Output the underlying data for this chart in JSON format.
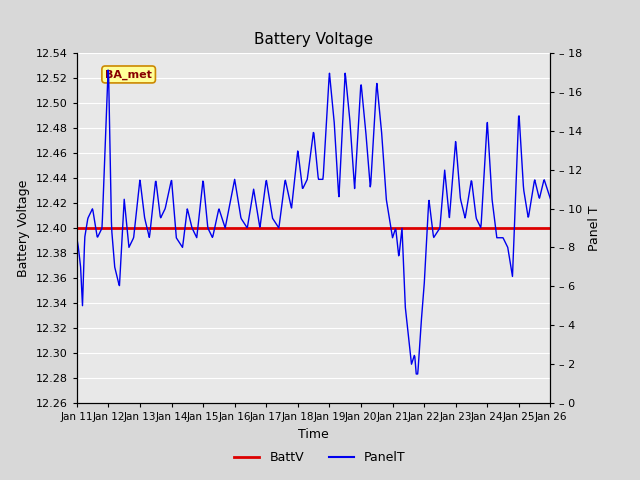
{
  "title": "Battery Voltage",
  "xlabel": "Time",
  "ylabel_left": "Battery Voltage",
  "ylabel_right": "Panel T",
  "ylim_left": [
    12.26,
    12.54
  ],
  "ylim_right": [
    0,
    18
  ],
  "batt_voltage": 12.4,
  "x_tick_labels": [
    "Jan 11",
    "Jan 12",
    "Jan 13",
    "Jan 14",
    "Jan 15",
    "Jan 16",
    "Jan 17",
    "Jan 18",
    "Jan 19",
    "Jan 20",
    "Jan 21",
    "Jan 22",
    "Jan 23",
    "Jan 24",
    "Jan 25",
    "Jan 26"
  ],
  "fig_bg_color": "#d8d8d8",
  "plot_bg_color": "#e8e8e8",
  "grid_color": "#ffffff",
  "line_color_blue": "#0000ee",
  "line_color_red": "#dd0000",
  "annotation_text": "BA_met",
  "annotation_bg": "#ffff99",
  "annotation_border": "#cc8800",
  "annotation_text_color": "#880000",
  "legend_labels": [
    "BattV",
    "PanelT"
  ],
  "panel_t_keypoints": [
    [
      0.0,
      8.5
    ],
    [
      0.05,
      8.0
    ],
    [
      0.12,
      7.0
    ],
    [
      0.18,
      5.0
    ],
    [
      0.25,
      8.5
    ],
    [
      0.35,
      9.5
    ],
    [
      0.5,
      10.0
    ],
    [
      0.65,
      8.5
    ],
    [
      0.8,
      9.0
    ],
    [
      1.0,
      17.5
    ],
    [
      1.1,
      9.0
    ],
    [
      1.2,
      7.0
    ],
    [
      1.35,
      6.0
    ],
    [
      1.5,
      10.5
    ],
    [
      1.65,
      8.0
    ],
    [
      1.8,
      8.5
    ],
    [
      2.0,
      11.5
    ],
    [
      2.15,
      9.5
    ],
    [
      2.3,
      8.5
    ],
    [
      2.5,
      11.5
    ],
    [
      2.65,
      9.5
    ],
    [
      2.8,
      10.0
    ],
    [
      3.0,
      11.5
    ],
    [
      3.15,
      8.5
    ],
    [
      3.35,
      8.0
    ],
    [
      3.5,
      10.0
    ],
    [
      3.65,
      9.0
    ],
    [
      3.8,
      8.5
    ],
    [
      4.0,
      11.5
    ],
    [
      4.15,
      9.0
    ],
    [
      4.3,
      8.5
    ],
    [
      4.5,
      10.0
    ],
    [
      4.7,
      9.0
    ],
    [
      5.0,
      11.5
    ],
    [
      5.2,
      9.5
    ],
    [
      5.4,
      9.0
    ],
    [
      5.6,
      11.0
    ],
    [
      5.8,
      9.0
    ],
    [
      6.0,
      11.5
    ],
    [
      6.2,
      9.5
    ],
    [
      6.4,
      9.0
    ],
    [
      6.6,
      11.5
    ],
    [
      6.8,
      10.0
    ],
    [
      7.0,
      13.0
    ],
    [
      7.15,
      11.0
    ],
    [
      7.3,
      11.5
    ],
    [
      7.5,
      14.0
    ],
    [
      7.65,
      11.5
    ],
    [
      7.8,
      11.5
    ],
    [
      8.0,
      17.0
    ],
    [
      8.15,
      14.5
    ],
    [
      8.3,
      10.5
    ],
    [
      8.5,
      17.0
    ],
    [
      8.65,
      14.5
    ],
    [
      8.8,
      11.0
    ],
    [
      9.0,
      16.5
    ],
    [
      9.15,
      14.0
    ],
    [
      9.3,
      11.0
    ],
    [
      9.5,
      16.5
    ],
    [
      9.65,
      14.0
    ],
    [
      9.8,
      10.5
    ],
    [
      10.0,
      8.5
    ],
    [
      10.1,
      9.0
    ],
    [
      10.2,
      7.5
    ],
    [
      10.3,
      9.0
    ],
    [
      10.4,
      5.0
    ],
    [
      10.5,
      3.5
    ],
    [
      10.6,
      2.0
    ],
    [
      10.7,
      2.5
    ],
    [
      10.75,
      1.5
    ],
    [
      10.8,
      1.5
    ],
    [
      10.9,
      4.0
    ],
    [
      11.0,
      6.0
    ],
    [
      11.15,
      10.5
    ],
    [
      11.3,
      8.5
    ],
    [
      11.5,
      9.0
    ],
    [
      11.65,
      12.0
    ],
    [
      11.8,
      9.5
    ],
    [
      12.0,
      13.5
    ],
    [
      12.15,
      10.5
    ],
    [
      12.3,
      9.5
    ],
    [
      12.5,
      11.5
    ],
    [
      12.65,
      9.5
    ],
    [
      12.8,
      9.0
    ],
    [
      13.0,
      14.5
    ],
    [
      13.15,
      10.5
    ],
    [
      13.3,
      8.5
    ],
    [
      13.5,
      8.5
    ],
    [
      13.65,
      8.0
    ],
    [
      13.8,
      6.5
    ],
    [
      14.0,
      15.0
    ],
    [
      14.15,
      11.0
    ],
    [
      14.3,
      9.5
    ],
    [
      14.5,
      11.5
    ],
    [
      14.65,
      10.5
    ],
    [
      14.8,
      11.5
    ],
    [
      15.0,
      10.5
    ]
  ]
}
